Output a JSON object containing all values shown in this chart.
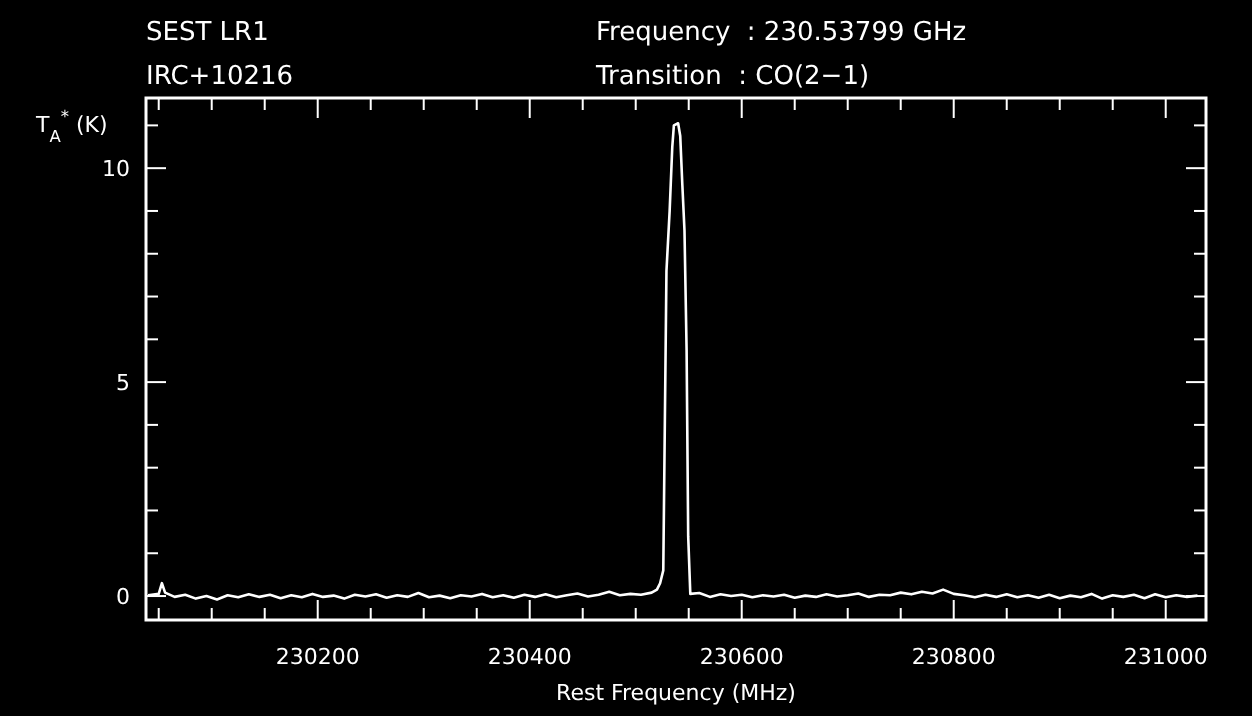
{
  "chart_data": {
    "type": "line",
    "title": "SEST LR1",
    "subtitle": "IRC+10216",
    "annotations": [
      "Frequency  : 230.53799 GHz",
      "Transition  : CO(2−1)"
    ],
    "xlabel": "Rest Frequency (MHz)",
    "ylabel": "T$_{A}$$^{*}$ (K)",
    "xlim": [
      230038,
      231038
    ],
    "ylim": [
      -0.56,
      11.64
    ],
    "xticks": [
      {
        "value": 230050,
        "label": null
      },
      {
        "value": 230100,
        "label": null
      },
      {
        "value": 230150,
        "label": null
      },
      230200,
      {
        "value": 230250,
        "label": null
      },
      {
        "value": 230300,
        "label": null
      },
      {
        "value": 230350,
        "label": null
      },
      230400,
      {
        "value": 230450,
        "label": null
      },
      {
        "value": 230500,
        "label": null
      },
      {
        "value": 230550,
        "label": null
      },
      230600,
      {
        "value": 230650,
        "label": null
      },
      {
        "value": 230700,
        "label": null
      },
      {
        "value": 230750,
        "label": null
      },
      230800,
      {
        "value": 230850,
        "label": null
      },
      {
        "value": 230900,
        "label": null
      },
      {
        "value": 230950,
        "label": null
      },
      231000
    ],
    "yticks": [
      0,
      {
        "value": 1,
        "label": null
      },
      {
        "value": 2,
        "label": null
      },
      {
        "value": 3,
        "label": null
      },
      {
        "value": 4,
        "label": null
      },
      5,
      {
        "value": 6,
        "label": null
      },
      {
        "value": 7,
        "label": null
      },
      {
        "value": 8,
        "label": null
      },
      {
        "value": 9,
        "label": null
      },
      10,
      {
        "value": 11,
        "label": null
      }
    ],
    "grid": false,
    "series": [
      {
        "color": "#ffffff",
        "x": [
          230040,
          230050,
          230053,
          230056,
          230065,
          230075,
          230085,
          230095,
          230105,
          230115,
          230125,
          230135,
          230145,
          230155,
          230165,
          230175,
          230185,
          230195,
          230205,
          230215,
          230225,
          230235,
          230245,
          230255,
          230265,
          230275,
          230285,
          230295,
          230305,
          230315,
          230325,
          230335,
          230345,
          230355,
          230365,
          230375,
          230385,
          230395,
          230405,
          230415,
          230425,
          230435,
          230445,
          230455,
          230465,
          230475,
          230485,
          230495,
          230505,
          230515,
          230520,
          230523,
          230526,
          230527.5,
          230529,
          230532,
          230534.5,
          230536,
          230540,
          230542,
          230544,
          230546,
          230548,
          230549.5,
          230551.5,
          230560,
          230570,
          230580,
          230590,
          230600,
          230610,
          230620,
          230630,
          230640,
          230650,
          230660,
          230670,
          230680,
          230690,
          230700,
          230710,
          230720,
          230730,
          230740,
          230750,
          230760,
          230770,
          230780,
          230790,
          230800,
          230810,
          230820,
          230830,
          230840,
          230850,
          230860,
          230870,
          230880,
          230890,
          230900,
          230910,
          230920,
          230930,
          230940,
          230950,
          230960,
          230970,
          230980,
          230990,
          231000,
          231010,
          231020,
          231030
        ],
        "values": [
          0.02,
          0.05,
          0.3,
          0.08,
          -0.02,
          0.03,
          -0.06,
          0.0,
          -0.08,
          0.02,
          -0.03,
          0.04,
          -0.02,
          0.03,
          -0.05,
          0.02,
          -0.03,
          0.05,
          -0.02,
          0.01,
          -0.06,
          0.03,
          -0.01,
          0.04,
          -0.04,
          0.02,
          -0.02,
          0.07,
          -0.03,
          0.01,
          -0.05,
          0.02,
          -0.01,
          0.05,
          -0.03,
          0.02,
          -0.04,
          0.03,
          -0.02,
          0.04,
          -0.03,
          0.02,
          0.06,
          -0.01,
          0.03,
          0.1,
          0.02,
          0.05,
          0.03,
          0.08,
          0.15,
          0.3,
          0.6,
          4.1,
          7.6,
          9.0,
          10.5,
          11.0,
          11.05,
          10.75,
          9.6,
          8.55,
          5.75,
          1.4,
          0.05,
          0.07,
          -0.02,
          0.04,
          0.0,
          0.03,
          -0.03,
          0.02,
          -0.01,
          0.03,
          -0.04,
          0.01,
          -0.02,
          0.04,
          -0.01,
          0.02,
          0.06,
          -0.02,
          0.03,
          0.02,
          0.08,
          0.04,
          0.1,
          0.06,
          0.15,
          0.05,
          0.02,
          -0.03,
          0.03,
          -0.02,
          0.04,
          -0.03,
          0.02,
          -0.04,
          0.03,
          -0.05,
          0.01,
          -0.03,
          0.05,
          -0.06,
          0.02,
          -0.02,
          0.03,
          -0.05,
          0.04,
          -0.03,
          0.02,
          -0.02,
          0.01
        ]
      }
    ]
  }
}
